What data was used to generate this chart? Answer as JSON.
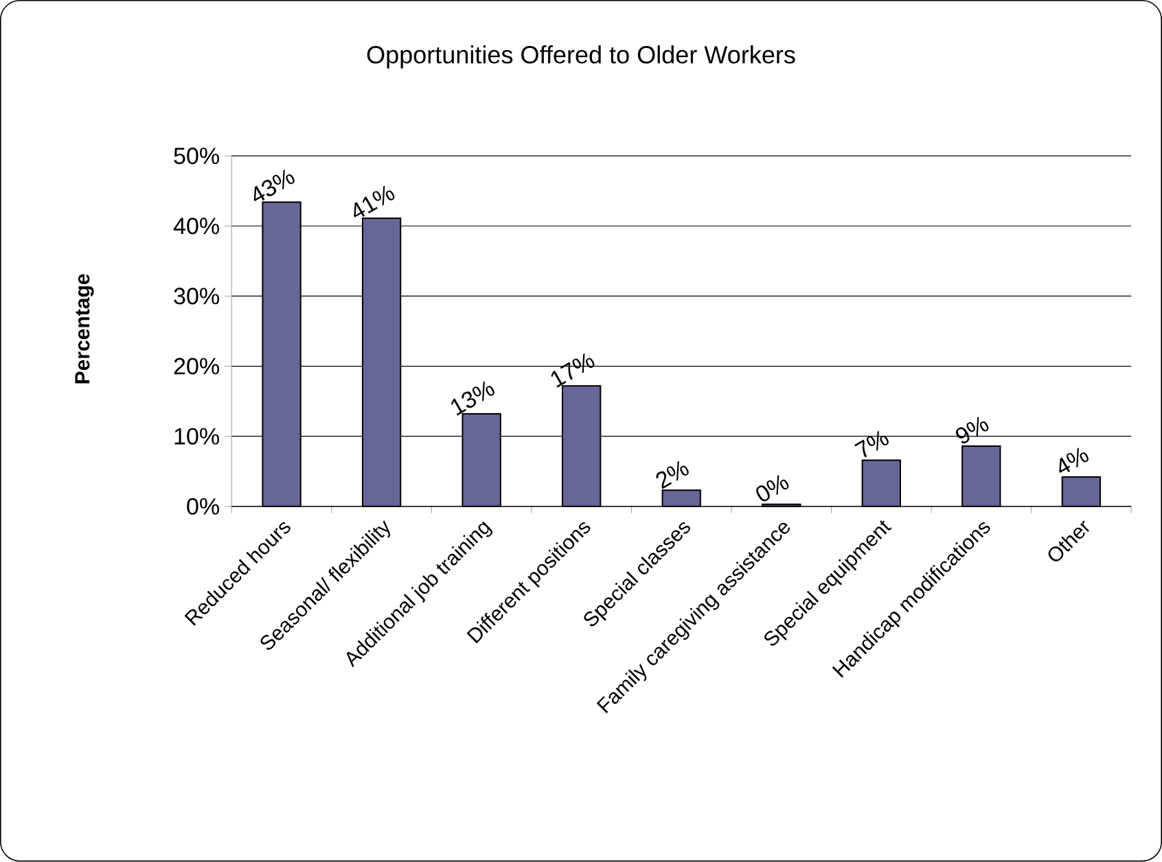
{
  "chart_data": {
    "type": "bar",
    "title": "Opportunities Offered to Older Workers",
    "ylabel": "Percentage",
    "categories": [
      "Reduced hours",
      "Seasonal/ flexibility",
      "Additional job training",
      "Different positions",
      "Special classes",
      "Family caregiving assistance",
      "Special equipment",
      "Handicap modifications",
      "Other"
    ],
    "values": [
      43.4,
      41.1,
      13.2,
      17.2,
      2.3,
      0.3,
      6.6,
      8.6,
      4.2
    ],
    "value_labels": [
      "43%",
      "41%",
      "13%",
      "17%",
      "2%",
      "0%",
      "7%",
      "9%",
      "4%"
    ],
    "color": "#666699",
    "ylim": [
      0,
      50
    ],
    "yticks": [
      {
        "value": 0,
        "label": "0%"
      },
      {
        "value": 10,
        "label": "10%"
      },
      {
        "value": 20,
        "label": "20%"
      },
      {
        "value": 30,
        "label": "30%"
      },
      {
        "value": 40,
        "label": "40%"
      },
      {
        "value": 50,
        "label": "50%"
      }
    ],
    "grid": "y"
  }
}
